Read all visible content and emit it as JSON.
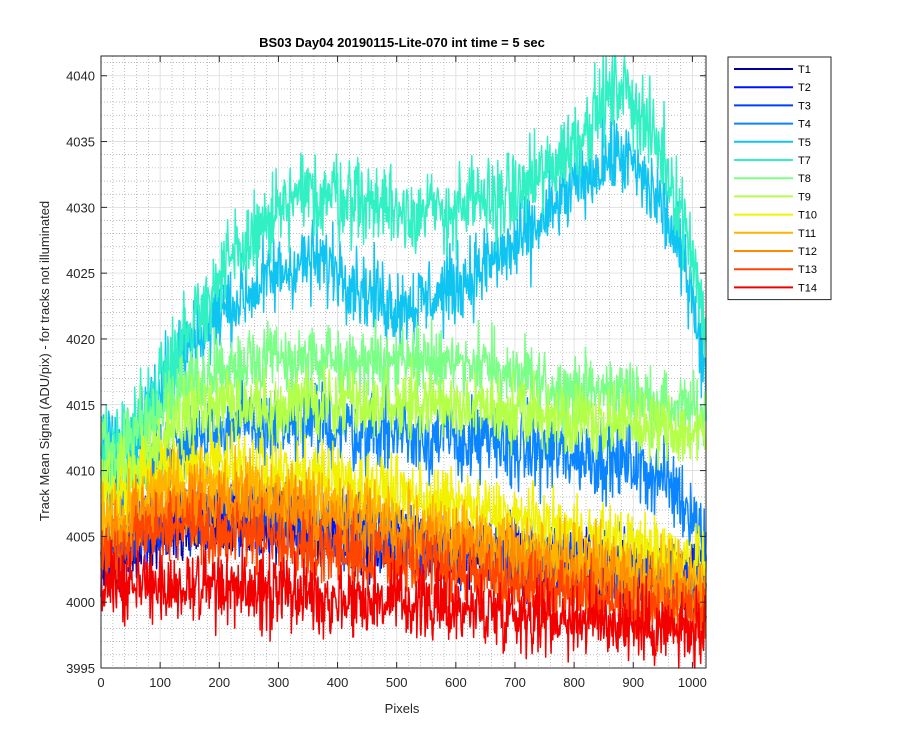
{
  "chart_data": {
    "type": "line",
    "title": "BS03 Day04 20190115-Lite-070 int time = 5 sec",
    "xlabel": "Pixels",
    "ylabel": "Track Mean Signal (ADU/pix) - for tracks not illuminated",
    "xlim": [
      0,
      1023
    ],
    "ylim": [
      3995,
      4041.5
    ],
    "xticks": [
      0,
      100,
      200,
      300,
      400,
      500,
      600,
      700,
      800,
      900,
      1000
    ],
    "yticks": [
      3995,
      4000,
      4005,
      4010,
      4015,
      4020,
      4025,
      4030,
      4035,
      4040
    ],
    "grid": true,
    "minor_grid": true,
    "legend_position": "outside-top-right",
    "x": [
      0,
      25,
      50,
      100,
      150,
      200,
      250,
      300,
      350,
      400,
      450,
      500,
      550,
      600,
      650,
      700,
      750,
      800,
      850,
      880,
      900,
      950,
      1000,
      1023
    ],
    "series": [
      {
        "name": "T1",
        "color": "#0000a0",
        "noise": 1.2,
        "values": [
          4003.5,
          4003,
          4004,
          4005.5,
          4006,
          4006.3,
          4006,
          4006,
          4005.5,
          4005,
          4004.5,
          4004,
          4003.5,
          4003.5,
          4003.3,
          4003,
          4002.8,
          4002.5,
          4002.3,
          4002.2,
          4002,
          4001.8,
          4001.5,
          4001.5
        ]
      },
      {
        "name": "T2",
        "color": "#0010ff",
        "noise": 1.3,
        "values": [
          4004,
          4003.5,
          4004.5,
          4006,
          4006.5,
          4006.8,
          4006.5,
          4006.3,
          4006,
          4005.5,
          4005,
          4004.5,
          4004.3,
          4004,
          4003.8,
          4003.5,
          4003.3,
          4003,
          4002.8,
          4002.6,
          4002.5,
          4002.2,
          4002,
          4002
        ]
      },
      {
        "name": "T3",
        "color": "#0040ff",
        "noise": 1.3,
        "values": [
          4004.5,
          4004,
          4005,
          4006.3,
          4006.8,
          4007,
          4006.8,
          4006.5,
          4006.2,
          4005.8,
          4005.3,
          4004.8,
          4004.5,
          4004.2,
          4004,
          4003.7,
          4003.4,
          4003.2,
          4003,
          4002.8,
          4002.7,
          4002.4,
          4002.2,
          4002.2
        ]
      },
      {
        "name": "T4",
        "color": "#0a84ff",
        "noise": 1.5,
        "values": [
          4009,
          4008,
          4009,
          4011,
          4012.5,
          4013.3,
          4013.5,
          4013.5,
          4013.5,
          4013.3,
          4013,
          4013,
          4012.7,
          4012.3,
          4012,
          4011.7,
          4011.5,
          4011.2,
          4011,
          4010.8,
          4010.5,
          4009.5,
          4007,
          4004
        ]
      },
      {
        "name": "T5",
        "color": "#10c4f2",
        "noise": 1.5,
        "values": [
          4012,
          4011,
          4012,
          4016,
          4019.5,
          4022,
          4023.5,
          4025,
          4026,
          4025.5,
          4023.5,
          4022.5,
          4023,
          4024,
          4025.5,
          4027,
          4029,
          4031.5,
          4033.5,
          4034,
          4033,
          4030,
          4024,
          4016
        ]
      },
      {
        "name": "T7",
        "color": "#30f0c4",
        "noise": 1.6,
        "values": [
          4013,
          4011.5,
          4012.5,
          4017,
          4021,
          4024.5,
          4027.5,
          4029.5,
          4031,
          4031,
          4030.5,
          4030,
          4029.5,
          4029.8,
          4030.5,
          4031,
          4032.5,
          4035,
          4038,
          4039.5,
          4038,
          4034,
          4027,
          4020
        ]
      },
      {
        "name": "T8",
        "color": "#7cff86",
        "noise": 1.3,
        "values": [
          4012,
          4011,
          4012,
          4014.5,
          4016.5,
          4017.5,
          4018,
          4018.3,
          4018.3,
          4018.3,
          4018.3,
          4018.2,
          4018.2,
          4018.5,
          4018,
          4017,
          4016.5,
          4016.2,
          4016,
          4016,
          4015.8,
          4015,
          4014.5,
          4014
        ]
      },
      {
        "name": "T9",
        "color": "#b4ff48",
        "noise": 1.3,
        "values": [
          4010,
          4009,
          4010,
          4012.5,
          4014,
          4014.8,
          4015,
          4015,
          4015,
          4015,
          4015,
          4015,
          4015,
          4014.8,
          4014.6,
          4014.4,
          4014.2,
          4014,
          4013.8,
          4013.6,
          4013.5,
          4013.2,
          4012.8,
          4012.5
        ]
      },
      {
        "name": "T10",
        "color": "#f2f200",
        "noise": 1.3,
        "values": [
          4007.5,
          4007.5,
          4008.5,
          4010,
          4010.5,
          4010.5,
          4010.3,
          4010,
          4009.7,
          4009.3,
          4008.8,
          4008.3,
          4007.8,
          4007.3,
          4006.8,
          4006.3,
          4005.8,
          4005.3,
          4004.8,
          4004.5,
          4004.3,
          4003.8,
          4003.3,
          4003
        ]
      },
      {
        "name": "T11",
        "color": "#ffb400",
        "noise": 1.3,
        "values": [
          4006,
          4006,
          4007,
          4008.5,
          4009,
          4008.8,
          4008.5,
          4008.2,
          4007.8,
          4007.3,
          4006.8,
          4006.3,
          4005.8,
          4005.3,
          4004.8,
          4004.3,
          4003.8,
          4003.4,
          4003,
          4002.7,
          4002.5,
          4002,
          4001.5,
          4001.3
        ]
      },
      {
        "name": "T12",
        "color": "#ff8a00",
        "noise": 1.3,
        "values": [
          4005,
          4005,
          4006,
          4007.3,
          4007.6,
          4007.4,
          4007.1,
          4006.8,
          4006.4,
          4006,
          4005.5,
          4005,
          4004.5,
          4004,
          4003.5,
          4003,
          4002.6,
          4002.2,
          4001.8,
          4001.5,
          4001.3,
          4000.8,
          4000.3,
          4000
        ]
      },
      {
        "name": "T13",
        "color": "#ff4600",
        "noise": 1.3,
        "values": [
          4003.8,
          4003.8,
          4004.6,
          4005.8,
          4005.8,
          4005.5,
          4005.1,
          4004.7,
          4004.2,
          4003.8,
          4003.4,
          4003,
          4002.6,
          4002.2,
          4001.8,
          4001.4,
          4001,
          4000.6,
          4000.2,
          4000,
          3999.8,
          3999.4,
          3999,
          3998.8
        ]
      },
      {
        "name": "T14",
        "color": "#f20000",
        "noise": 1.4,
        "values": [
          4001.5,
          4001.3,
          4001.5,
          4001.5,
          4001.3,
          4001,
          4000.9,
          4000.8,
          4000.6,
          4000.4,
          4000.2,
          4000,
          3999.8,
          3999.6,
          3999.4,
          3999.2,
          3999,
          3998.8,
          3998.6,
          3998.4,
          3998.3,
          3998,
          3997.6,
          3997.5
        ]
      }
    ]
  }
}
